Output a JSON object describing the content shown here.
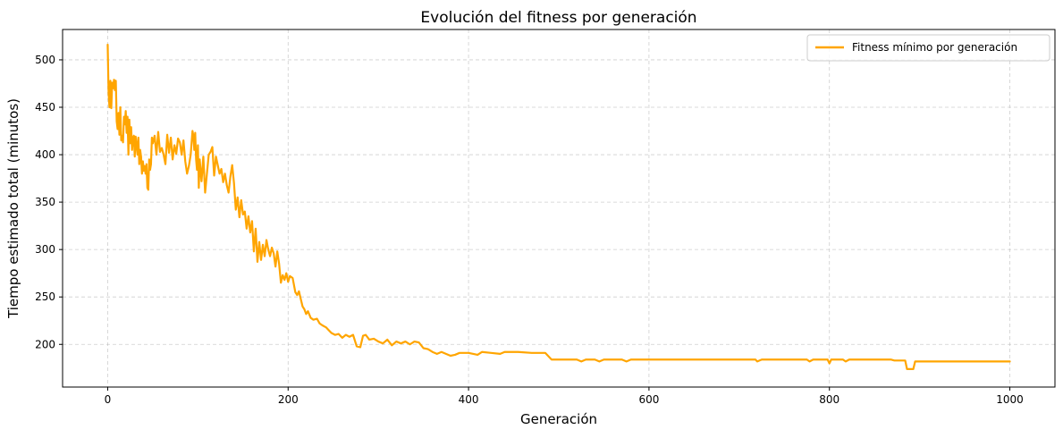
{
  "chart_data": {
    "type": "line",
    "title": "Evolución del fitness por generación",
    "xlabel": "Generación",
    "ylabel": "Tiempo estimado total (minutos)",
    "xlim": [
      -50,
      1050
    ],
    "ylim": [
      155,
      532
    ],
    "xticks": [
      0,
      200,
      400,
      600,
      800,
      1000
    ],
    "xtick_labels": [
      "0",
      "200",
      "400",
      "600",
      "800",
      "1000"
    ],
    "yticks": [
      200,
      250,
      300,
      350,
      400,
      450,
      500
    ],
    "ytick_labels": [
      "200",
      "250",
      "300",
      "350",
      "400",
      "450",
      "500"
    ],
    "grid": true,
    "legend": {
      "placement": "top-right",
      "entries": [
        "Fitness mínimo por generación"
      ]
    },
    "series": [
      {
        "name": "Fitness mínimo por generación",
        "color": "#FFA500",
        "points": [
          [
            0,
            516
          ],
          [
            1,
            465
          ],
          [
            2,
            450
          ],
          [
            3,
            478
          ],
          [
            4,
            449
          ],
          [
            5,
            476
          ],
          [
            6,
            470
          ],
          [
            7,
            479
          ],
          [
            8,
            468
          ],
          [
            9,
            478
          ],
          [
            10,
            435
          ],
          [
            11,
            427
          ],
          [
            12,
            444
          ],
          [
            13,
            421
          ],
          [
            14,
            450
          ],
          [
            15,
            415
          ],
          [
            16,
            420
          ],
          [
            17,
            413
          ],
          [
            18,
            440
          ],
          [
            19,
            432
          ],
          [
            20,
            446
          ],
          [
            21,
            423
          ],
          [
            22,
            440
          ],
          [
            23,
            400
          ],
          [
            24,
            437
          ],
          [
            25,
            412
          ],
          [
            26,
            429
          ],
          [
            27,
            405
          ],
          [
            28,
            418
          ],
          [
            29,
            420
          ],
          [
            30,
            398
          ],
          [
            31,
            419
          ],
          [
            32,
            410
          ],
          [
            33,
            400
          ],
          [
            34,
            418
          ],
          [
            35,
            390
          ],
          [
            36,
            405
          ],
          [
            37,
            398
          ],
          [
            38,
            380
          ],
          [
            39,
            393
          ],
          [
            40,
            383
          ],
          [
            41,
            388
          ],
          [
            42,
            380
          ],
          [
            43,
            390
          ],
          [
            44,
            365
          ],
          [
            45,
            363
          ],
          [
            46,
            395
          ],
          [
            47,
            384
          ],
          [
            48,
            390
          ],
          [
            49,
            418
          ],
          [
            50,
            412
          ],
          [
            52,
            420
          ],
          [
            54,
            400
          ],
          [
            56,
            424
          ],
          [
            58,
            403
          ],
          [
            60,
            407
          ],
          [
            62,
            400
          ],
          [
            64,
            390
          ],
          [
            66,
            421
          ],
          [
            68,
            402
          ],
          [
            70,
            418
          ],
          [
            72,
            395
          ],
          [
            74,
            410
          ],
          [
            76,
            401
          ],
          [
            78,
            417
          ],
          [
            80,
            413
          ],
          [
            82,
            400
          ],
          [
            84,
            415
          ],
          [
            86,
            393
          ],
          [
            88,
            380
          ],
          [
            90,
            388
          ],
          [
            92,
            400
          ],
          [
            94,
            425
          ],
          [
            95,
            420
          ],
          [
            96,
            405
          ],
          [
            97,
            423
          ],
          [
            98,
            395
          ],
          [
            99,
            384
          ],
          [
            100,
            410
          ],
          [
            101,
            365
          ],
          [
            102,
            395
          ],
          [
            104,
            372
          ],
          [
            106,
            398
          ],
          [
            108,
            360
          ],
          [
            110,
            380
          ],
          [
            112,
            400
          ],
          [
            114,
            403
          ],
          [
            116,
            408
          ],
          [
            118,
            378
          ],
          [
            120,
            398
          ],
          [
            122,
            389
          ],
          [
            124,
            380
          ],
          [
            126,
            385
          ],
          [
            128,
            371
          ],
          [
            130,
            380
          ],
          [
            132,
            368
          ],
          [
            134,
            360
          ],
          [
            136,
            377
          ],
          [
            138,
            389
          ],
          [
            140,
            370
          ],
          [
            142,
            342
          ],
          [
            144,
            355
          ],
          [
            146,
            334
          ],
          [
            148,
            352
          ],
          [
            150,
            337
          ],
          [
            152,
            340
          ],
          [
            154,
            322
          ],
          [
            156,
            335
          ],
          [
            158,
            318
          ],
          [
            160,
            330
          ],
          [
            162,
            298
          ],
          [
            164,
            322
          ],
          [
            166,
            287
          ],
          [
            168,
            308
          ],
          [
            170,
            289
          ],
          [
            172,
            305
          ],
          [
            174,
            293
          ],
          [
            176,
            310
          ],
          [
            178,
            300
          ],
          [
            180,
            293
          ],
          [
            182,
            302
          ],
          [
            184,
            296
          ],
          [
            186,
            282
          ],
          [
            188,
            298
          ],
          [
            190,
            285
          ],
          [
            192,
            265
          ],
          [
            194,
            273
          ],
          [
            196,
            268
          ],
          [
            198,
            275
          ],
          [
            200,
            266
          ],
          [
            202,
            272
          ],
          [
            205,
            270
          ],
          [
            208,
            255
          ],
          [
            210,
            252
          ],
          [
            212,
            256
          ],
          [
            214,
            248
          ],
          [
            216,
            240
          ],
          [
            218,
            237
          ],
          [
            220,
            232
          ],
          [
            222,
            235
          ],
          [
            225,
            228
          ],
          [
            228,
            226
          ],
          [
            232,
            227
          ],
          [
            235,
            222
          ],
          [
            238,
            220
          ],
          [
            242,
            218
          ],
          [
            245,
            215
          ],
          [
            248,
            212
          ],
          [
            252,
            210
          ],
          [
            256,
            211
          ],
          [
            260,
            207
          ],
          [
            264,
            210
          ],
          [
            268,
            208
          ],
          [
            272,
            210
          ],
          [
            276,
            198
          ],
          [
            280,
            197
          ],
          [
            283,
            209
          ],
          [
            286,
            210
          ],
          [
            290,
            205
          ],
          [
            295,
            206
          ],
          [
            300,
            203
          ],
          [
            305,
            201
          ],
          [
            310,
            205
          ],
          [
            315,
            199
          ],
          [
            320,
            203
          ],
          [
            325,
            201
          ],
          [
            330,
            203
          ],
          [
            335,
            200
          ],
          [
            340,
            203
          ],
          [
            345,
            202
          ],
          [
            350,
            196
          ],
          [
            355,
            195
          ],
          [
            360,
            192
          ],
          [
            365,
            190
          ],
          [
            370,
            192
          ],
          [
            375,
            190
          ],
          [
            380,
            188
          ],
          [
            385,
            189
          ],
          [
            390,
            191
          ],
          [
            400,
            191
          ],
          [
            410,
            189
          ],
          [
            415,
            192
          ],
          [
            425,
            191
          ],
          [
            435,
            190
          ],
          [
            440,
            192
          ],
          [
            455,
            192
          ],
          [
            470,
            191
          ],
          [
            485,
            191
          ],
          [
            492,
            184
          ],
          [
            500,
            184
          ],
          [
            520,
            184
          ],
          [
            525,
            182
          ],
          [
            530,
            184
          ],
          [
            540,
            184
          ],
          [
            545,
            182
          ],
          [
            550,
            184
          ],
          [
            570,
            184
          ],
          [
            575,
            182
          ],
          [
            580,
            184
          ],
          [
            600,
            184
          ],
          [
            650,
            184
          ],
          [
            700,
            184
          ],
          [
            718,
            184
          ],
          [
            720,
            182
          ],
          [
            725,
            184
          ],
          [
            760,
            184
          ],
          [
            775,
            184
          ],
          [
            778,
            182
          ],
          [
            782,
            184
          ],
          [
            798,
            184
          ],
          [
            800,
            180
          ],
          [
            802,
            184
          ],
          [
            815,
            184
          ],
          [
            818,
            182
          ],
          [
            822,
            184
          ],
          [
            860,
            184
          ],
          [
            868,
            184
          ],
          [
            872,
            183
          ],
          [
            884,
            183
          ],
          [
            886,
            174
          ],
          [
            893,
            174
          ],
          [
            895,
            182
          ],
          [
            950,
            182
          ],
          [
            1000,
            182
          ]
        ]
      }
    ]
  }
}
